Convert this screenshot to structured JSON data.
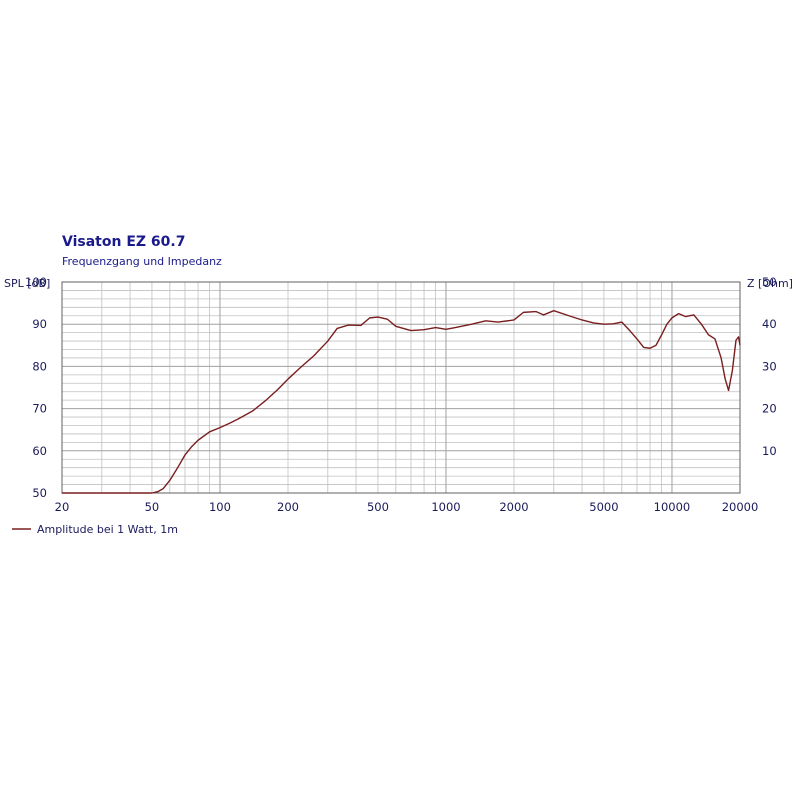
{
  "chart_data": {
    "type": "line",
    "title": "Visaton EZ 60.7",
    "subtitle": "Frequenzgang und Impedanz",
    "ylabel_left": "SPL [dB]",
    "ylabel_right": "Z [Ohm]",
    "x_scale": "log",
    "xlim": [
      20,
      20000
    ],
    "ylim_left": [
      50,
      100
    ],
    "ylim_right": [
      0,
      50
    ],
    "x_ticks": [
      20,
      50,
      100,
      200,
      500,
      1000,
      2000,
      5000,
      10000,
      20000
    ],
    "x_tick_labels": [
      "20",
      "50",
      "100",
      "200",
      "500",
      "1000",
      "2000",
      "5000",
      "10000",
      "20000"
    ],
    "y_ticks_left": [
      50,
      60,
      70,
      80,
      90,
      100
    ],
    "y_tick_labels_left": [
      "50",
      "60",
      "70",
      "80",
      "90",
      "100"
    ],
    "y_ticks_right": [
      10,
      20,
      30,
      40,
      50
    ],
    "y_tick_labels_right": [
      "10",
      "20",
      "30",
      "40",
      "50"
    ],
    "grid": true,
    "legend_position": "bottom-left",
    "colors": {
      "series": "#7a1f1f",
      "grid": "#c0c0c0",
      "grid_major": "#a0a0a0",
      "text": "#1a1a5a",
      "title": "#1a1a8c"
    },
    "series": [
      {
        "name": "Amplitude bei 1 Watt, 1m",
        "points": [
          [
            20,
            50
          ],
          [
            50,
            50
          ],
          [
            53,
            50.3
          ],
          [
            56,
            51
          ],
          [
            60,
            53
          ],
          [
            65,
            56
          ],
          [
            70,
            59
          ],
          [
            75,
            61
          ],
          [
            80,
            62.5
          ],
          [
            90,
            64.5
          ],
          [
            100,
            65.5
          ],
          [
            110,
            66.5
          ],
          [
            120,
            67.5
          ],
          [
            140,
            69.5
          ],
          [
            160,
            72
          ],
          [
            180,
            74.5
          ],
          [
            200,
            77
          ],
          [
            230,
            80
          ],
          [
            260,
            82.5
          ],
          [
            300,
            86
          ],
          [
            330,
            89
          ],
          [
            370,
            89.8
          ],
          [
            420,
            89.7
          ],
          [
            460,
            91.5
          ],
          [
            500,
            91.7
          ],
          [
            550,
            91.2
          ],
          [
            600,
            89.5
          ],
          [
            700,
            88.5
          ],
          [
            800,
            88.7
          ],
          [
            900,
            89.2
          ],
          [
            1000,
            88.8
          ],
          [
            1100,
            89.2
          ],
          [
            1300,
            90
          ],
          [
            1500,
            90.8
          ],
          [
            1700,
            90.5
          ],
          [
            2000,
            91
          ],
          [
            2200,
            92.8
          ],
          [
            2500,
            93
          ],
          [
            2700,
            92.2
          ],
          [
            3000,
            93.2
          ],
          [
            3500,
            92
          ],
          [
            4000,
            91
          ],
          [
            4500,
            90.3
          ],
          [
            5000,
            90
          ],
          [
            5500,
            90.1
          ],
          [
            6000,
            90.5
          ],
          [
            6500,
            88.5
          ],
          [
            7000,
            86.5
          ],
          [
            7500,
            84.5
          ],
          [
            8000,
            84.3
          ],
          [
            8500,
            85
          ],
          [
            9000,
            87.5
          ],
          [
            9500,
            90
          ],
          [
            10000,
            91.5
          ],
          [
            10700,
            92.5
          ],
          [
            11500,
            91.8
          ],
          [
            12500,
            92.2
          ],
          [
            13500,
            90
          ],
          [
            14500,
            87.5
          ],
          [
            15500,
            86.5
          ],
          [
            16500,
            82
          ],
          [
            17200,
            77
          ],
          [
            17800,
            74.3
          ],
          [
            18500,
            79
          ],
          [
            19200,
            86.2
          ],
          [
            19700,
            87
          ],
          [
            20000,
            85
          ]
        ]
      }
    ]
  }
}
